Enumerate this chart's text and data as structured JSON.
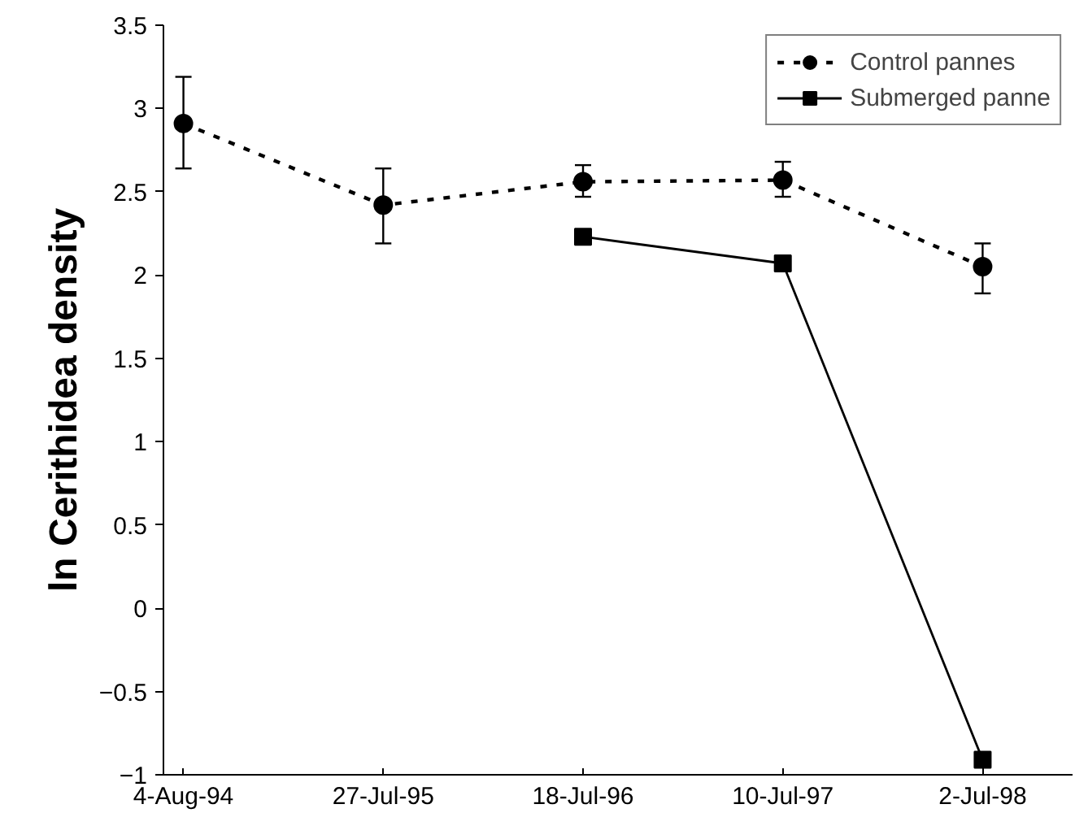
{
  "chart_data": {
    "type": "line",
    "ylabel": "ln Cerithidea density",
    "categories": [
      "4-Aug-94",
      "27-Jul-95",
      "18-Jul-96",
      "10-Jul-97",
      "2-Jul-98"
    ],
    "ylim": [
      -1,
      3.5
    ],
    "yticks": [
      -1,
      -0.5,
      0,
      0.5,
      1,
      1.5,
      2,
      2.5,
      3,
      3.5
    ],
    "grid": false,
    "legend": "top right",
    "series": [
      {
        "name": "Control pannes",
        "color": "#000000",
        "values": [
          2.91,
          2.42,
          2.56,
          2.57,
          2.05
        ],
        "errors": [
          [
            2.64,
            3.19
          ],
          [
            2.19,
            2.64
          ],
          [
            2.47,
            2.66
          ],
          [
            2.47,
            2.68
          ],
          [
            1.89,
            2.19
          ]
        ],
        "marker": "circle",
        "line_style": "dashed"
      },
      {
        "name": "Submerged panne",
        "color": "#000000",
        "values": [
          null,
          null,
          2.23,
          2.07,
          -0.91
        ],
        "marker": "square",
        "line_style": "solid"
      }
    ]
  }
}
